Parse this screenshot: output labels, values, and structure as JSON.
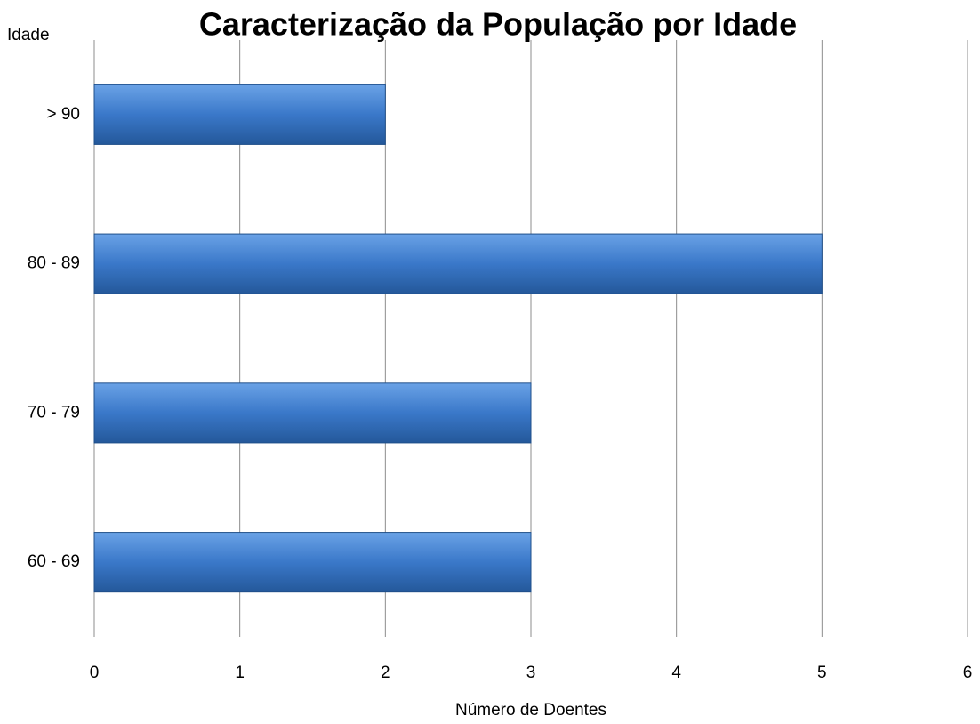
{
  "chart_data": {
    "type": "hbar",
    "title": "Caracterização da População por Idade",
    "y_label": "Idade",
    "x_label": "Número de Doentes",
    "categories": [
      "60 - 69",
      "70 - 79",
      "80 - 89",
      "> 90"
    ],
    "values": [
      3,
      3,
      5,
      2
    ],
    "color": "#3a78c9",
    "xlim": [
      0,
      6
    ],
    "xticks": [
      0,
      1,
      2,
      3,
      4,
      5,
      6
    ],
    "grid": true
  }
}
